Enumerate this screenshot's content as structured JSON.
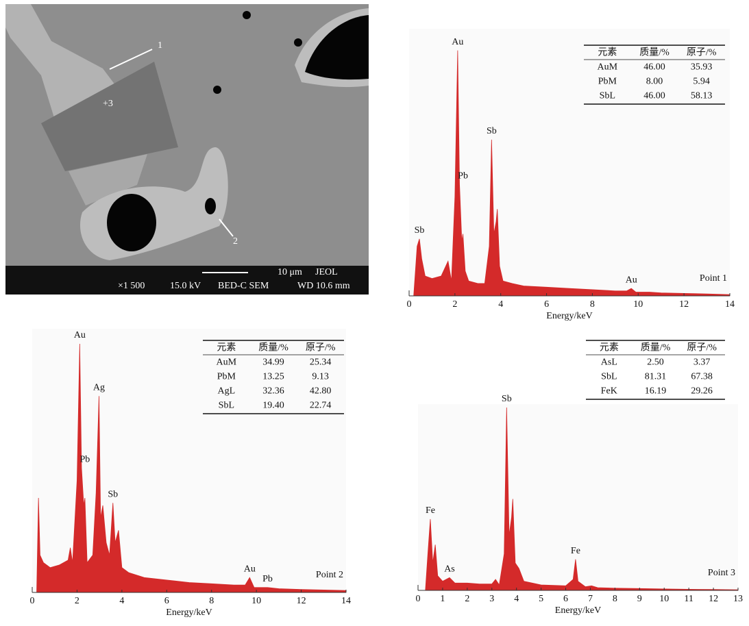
{
  "sem_image": {
    "marker_1": "1",
    "marker_2": "2",
    "marker_3": "+3",
    "scale": "10 μm",
    "brand": "JEOL",
    "magnification": "×1 500",
    "voltage": "15.0 kV",
    "mode": "BED-C SEM",
    "working_distance": "WD 10.6 mm"
  },
  "chart_data": [
    {
      "type": "area",
      "point_label": "Point 1",
      "xlabel": "Energy/keV",
      "color": "#d42a2a",
      "x": [
        0.2,
        0.35,
        0.45,
        0.55,
        0.7,
        1.0,
        1.4,
        1.7,
        1.85,
        2.0,
        2.12,
        2.2,
        2.3,
        2.35,
        2.45,
        2.6,
        3.0,
        3.3,
        3.5,
        3.6,
        3.7,
        3.8,
        3.85,
        3.95,
        4.1,
        4.5,
        5,
        6,
        7,
        8,
        9,
        9.5,
        9.7,
        9.9,
        10.5,
        11,
        12,
        13,
        14
      ],
      "values": [
        0,
        20,
        23,
        15,
        8,
        7,
        8,
        14,
        6,
        40,
        99,
        45,
        22,
        25,
        10,
        6,
        5,
        5,
        20,
        63,
        25,
        30,
        35,
        12,
        6,
        5,
        4,
        3.5,
        3,
        2.5,
        2,
        2,
        3,
        1.5,
        1.5,
        1.2,
        1,
        0.8,
        0.5
      ],
      "xlim": [
        0,
        14
      ],
      "xticks": [
        0,
        2,
        4,
        6,
        8,
        10,
        12,
        14
      ],
      "ylim": [
        0,
        100
      ],
      "annotations": [
        {
          "text": "Au",
          "x": 2.12
        },
        {
          "text": "Sb",
          "x": 3.6
        },
        {
          "text": "Sb",
          "x": 0.45
        },
        {
          "text": "Pb",
          "x": 2.35
        },
        {
          "text": "Au",
          "x": 9.7
        }
      ],
      "table": {
        "header": [
          "元素",
          "质量/%",
          "原子/%"
        ],
        "rows": [
          [
            "AuM",
            "46.00",
            "35.93"
          ],
          [
            "PbM",
            "8.00",
            "5.94"
          ],
          [
            "SbL",
            "46.00",
            "58.13"
          ]
        ]
      }
    },
    {
      "type": "area",
      "point_label": "Point 2",
      "xlabel": "Energy/keV",
      "color": "#d42a2a",
      "x": [
        0.2,
        0.28,
        0.35,
        0.5,
        0.8,
        1.2,
        1.6,
        1.7,
        1.8,
        2.0,
        2.12,
        2.2,
        2.3,
        2.35,
        2.45,
        2.7,
        2.85,
        2.98,
        3.05,
        3.15,
        3.3,
        3.45,
        3.6,
        3.7,
        3.85,
        4.0,
        4.3,
        5,
        6,
        7,
        8,
        9,
        9.5,
        9.7,
        9.9,
        10.5,
        11,
        12,
        13,
        14
      ],
      "values": [
        0,
        38,
        15,
        12,
        10,
        11,
        13,
        18,
        12,
        45,
        100,
        50,
        35,
        38,
        12,
        15,
        40,
        79,
        30,
        35,
        20,
        15,
        36,
        20,
        25,
        10,
        8,
        6,
        5,
        4,
        3.5,
        3,
        3,
        6,
        2,
        2,
        1.5,
        1.2,
        1,
        0.8
      ],
      "xlim": [
        0,
        14
      ],
      "xticks": [
        0,
        2,
        4,
        6,
        8,
        10,
        12,
        14
      ],
      "ylim": [
        0,
        100
      ],
      "annotations": [
        {
          "text": "Au",
          "x": 2.12
        },
        {
          "text": "Ag",
          "x": 2.98
        },
        {
          "text": "Pb",
          "x": 2.35
        },
        {
          "text": "Sb",
          "x": 3.6
        },
        {
          "text": "Au",
          "x": 9.7
        },
        {
          "text": "Pb",
          "x": 10.5
        }
      ],
      "table": {
        "header": [
          "元素",
          "质量/%",
          "原子/%"
        ],
        "rows": [
          [
            "AuM",
            "34.99",
            "25.34"
          ],
          [
            "PbM",
            "13.25",
            "9.13"
          ],
          [
            "AgL",
            "32.36",
            "42.80"
          ],
          [
            "SbL",
            "19.40",
            "22.74"
          ]
        ]
      }
    },
    {
      "type": "area",
      "point_label": "Point 3",
      "xlabel": "Energy/keV",
      "color": "#d42a2a",
      "x": [
        0.3,
        0.4,
        0.5,
        0.6,
        0.7,
        0.8,
        1.0,
        1.28,
        1.5,
        2,
        2.5,
        3,
        3.15,
        3.3,
        3.5,
        3.6,
        3.7,
        3.8,
        3.85,
        3.95,
        4.1,
        4.3,
        5,
        6,
        6.3,
        6.4,
        6.5,
        6.8,
        7.05,
        7.3,
        8,
        9,
        10,
        11,
        12,
        13
      ],
      "values": [
        0,
        20,
        39,
        15,
        25,
        8,
        5,
        7,
        4,
        4,
        3.5,
        3.5,
        6,
        3,
        20,
        100,
        30,
        40,
        50,
        15,
        12,
        5,
        3,
        2.5,
        6,
        17,
        5,
        2,
        2.5,
        1.5,
        1.2,
        1,
        0.8,
        0.6,
        0.5,
        0.3
      ],
      "xlim": [
        0,
        13
      ],
      "xticks": [
        0,
        1,
        2,
        3,
        4,
        5,
        6,
        7,
        8,
        9,
        10,
        11,
        12,
        13
      ],
      "ylim": [
        0,
        100
      ],
      "annotations": [
        {
          "text": "Sb",
          "x": 3.6
        },
        {
          "text": "Fe",
          "x": 0.5
        },
        {
          "text": "As",
          "x": 1.28
        },
        {
          "text": "Fe",
          "x": 6.4
        }
      ],
      "table": {
        "header": [
          "元素",
          "质量/%",
          "原子/%"
        ],
        "rows": [
          [
            "AsL",
            "2.50",
            "3.37"
          ],
          [
            "SbL",
            "81.31",
            "67.38"
          ],
          [
            "FeK",
            "16.19",
            "29.26"
          ]
        ]
      }
    }
  ]
}
